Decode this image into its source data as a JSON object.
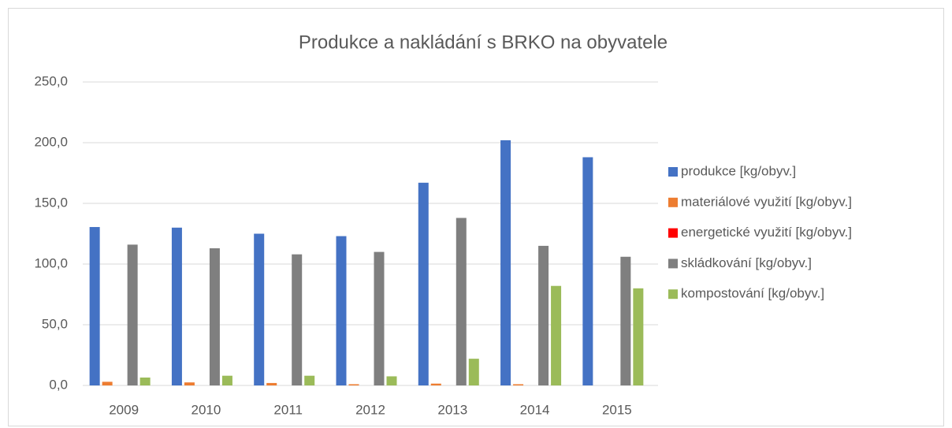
{
  "chart_data": {
    "type": "bar",
    "title": "Produkce a nakládání s BRKO na obyvatele",
    "categories": [
      "2009",
      "2010",
      "2011",
      "2012",
      "2013",
      "2014",
      "2015"
    ],
    "series": [
      {
        "name": "produkce  [kg/obyv.]",
        "color": "#4472c4",
        "values": [
          130.5,
          130,
          125,
          123,
          167,
          202,
          188
        ]
      },
      {
        "name": "materiálové využití  [kg/obyv.]",
        "color": "#ed7d31",
        "values": [
          3,
          2.5,
          2,
          1,
          1.5,
          1,
          0
        ]
      },
      {
        "name": "energetické využití [kg/obyv.]",
        "color": "#ff0000",
        "values": [
          0,
          0,
          0,
          0,
          0,
          0,
          0
        ]
      },
      {
        "name": "skládkování [kg/obyv.]",
        "color": "#7f7f7f",
        "values": [
          116,
          113,
          108,
          110,
          138,
          115,
          106
        ]
      },
      {
        "name": "kompostování  [kg/obyv.]",
        "color": "#9bbb59",
        "values": [
          6.5,
          8,
          8,
          7.5,
          22,
          82,
          80
        ]
      }
    ],
    "ylim": [
      0,
      250
    ],
    "yticks": [
      {
        "value": 0,
        "label": "0,0"
      },
      {
        "value": 50,
        "label": "50,0"
      },
      {
        "value": 100,
        "label": "100,0"
      },
      {
        "value": 150,
        "label": "150,0"
      },
      {
        "value": 200,
        "label": "200,0"
      },
      {
        "value": 250,
        "label": "250,0"
      }
    ],
    "grid": true,
    "legend": "right"
  }
}
